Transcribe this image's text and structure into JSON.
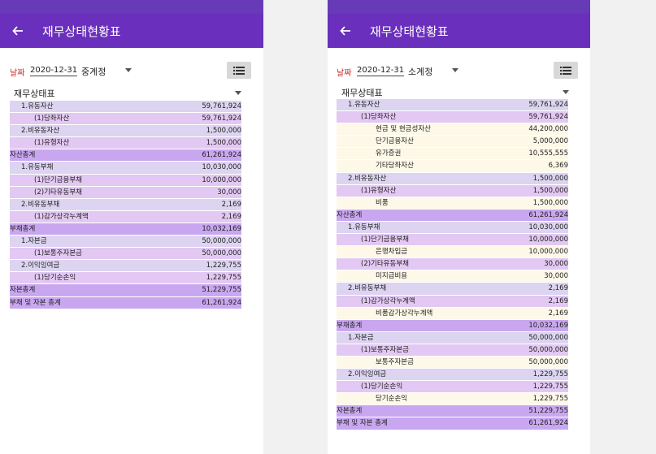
{
  "screen_title": "재무상태현황표",
  "date_label": "날짜",
  "date_value": "2020-12-31",
  "report_select_label": "재무상태표",
  "left": {
    "level_select": "중계정",
    "rows": [
      {
        "name": "1.유동자산",
        "amount": "59,761,924",
        "level": 1
      },
      {
        "name": "(1)당좌자산",
        "amount": "59,761,924",
        "level": 2
      },
      {
        "name": "2.비유동자산",
        "amount": "1,500,000",
        "level": 1
      },
      {
        "name": "(1)유형자산",
        "amount": "1,500,000",
        "level": 2
      },
      {
        "name": "자산총계",
        "amount": "61,261,924",
        "level": 0
      },
      {
        "name": "1.유동부채",
        "amount": "10,030,000",
        "level": 1
      },
      {
        "name": "(1)단기금융부채",
        "amount": "10,000,000",
        "level": 2
      },
      {
        "name": "(2)기타유동부채",
        "amount": "30,000",
        "level": 2
      },
      {
        "name": "2.비유동부채",
        "amount": "2,169",
        "level": 1
      },
      {
        "name": "(1)감가상각누계액",
        "amount": "2,169",
        "level": 2
      },
      {
        "name": "부채총계",
        "amount": "10,032,169",
        "level": 0
      },
      {
        "name": "1.자본금",
        "amount": "50,000,000",
        "level": 1
      },
      {
        "name": "(1)보통주자본금",
        "amount": "50,000,000",
        "level": 2
      },
      {
        "name": "2.이익잉여금",
        "amount": "1,229,755",
        "level": 1
      },
      {
        "name": "(1)당기순손익",
        "amount": "1,229,755",
        "level": 2
      },
      {
        "name": "자본총계",
        "amount": "51,229,755",
        "level": 0
      },
      {
        "name": "부채 및 자본 총계",
        "amount": "61,261,924",
        "level": 0
      }
    ]
  },
  "right": {
    "level_select": "소계정",
    "rows": [
      {
        "name": "1.유동자산",
        "amount": "59,761,924",
        "level": 1
      },
      {
        "name": "(1)당좌자산",
        "amount": "59,761,924",
        "level": 2
      },
      {
        "name": "현금 및 현금성자산",
        "amount": "44,200,000",
        "level": 3
      },
      {
        "name": "단기금융자산",
        "amount": "5,000,000",
        "level": 3
      },
      {
        "name": "유가증권",
        "amount": "10,555,555",
        "level": 3
      },
      {
        "name": "기타당좌자산",
        "amount": "6,369",
        "level": 3
      },
      {
        "name": "2.비유동자산",
        "amount": "1,500,000",
        "level": 1
      },
      {
        "name": "(1)유형자산",
        "amount": "1,500,000",
        "level": 2
      },
      {
        "name": "비품",
        "amount": "1,500,000",
        "level": 3
      },
      {
        "name": "자산총계",
        "amount": "61,261,924",
        "level": 0
      },
      {
        "name": "1.유동부채",
        "amount": "10,030,000",
        "level": 1
      },
      {
        "name": "(1)단기금융부채",
        "amount": "10,000,000",
        "level": 2
      },
      {
        "name": "은행차입금",
        "amount": "10,000,000",
        "level": 3
      },
      {
        "name": "(2)기타유동부채",
        "amount": "30,000",
        "level": 2
      },
      {
        "name": "미지급비용",
        "amount": "30,000",
        "level": 3
      },
      {
        "name": "2.비유동부채",
        "amount": "2,169",
        "level": 1
      },
      {
        "name": "(1)감가상각누계액",
        "amount": "2,169",
        "level": 2
      },
      {
        "name": "비품감가상각누계액",
        "amount": "2,169",
        "level": 3
      },
      {
        "name": "부채총계",
        "amount": "10,032,169",
        "level": 0
      },
      {
        "name": "1.자본금",
        "amount": "50,000,000",
        "level": 1
      },
      {
        "name": "(1)보통주자본금",
        "amount": "50,000,000",
        "level": 2
      },
      {
        "name": "보통주자본금",
        "amount": "50,000,000",
        "level": 3
      },
      {
        "name": "2.이익잉여금",
        "amount": "1,229,755",
        "level": 1
      },
      {
        "name": "(1)당기순손익",
        "amount": "1,229,755",
        "level": 2
      },
      {
        "name": "당기순손익",
        "amount": "1,229,755",
        "level": 3
      },
      {
        "name": "자본총계",
        "amount": "51,229,755",
        "level": 0
      },
      {
        "name": "부채 및 자본 총계",
        "amount": "61,261,924",
        "level": 0
      }
    ]
  },
  "colors": {
    "appbar": "#6a2fbc",
    "total_row": "#c9a7f0",
    "level1_row": "#dcd4f0",
    "level2_row": "#e2c8f2",
    "level3_row": "#fdf8e8",
    "date_label": "#c62828"
  },
  "icons": {
    "back": "arrow-back-icon",
    "list": "list-view-icon",
    "dropdown": "caret-down-icon"
  }
}
